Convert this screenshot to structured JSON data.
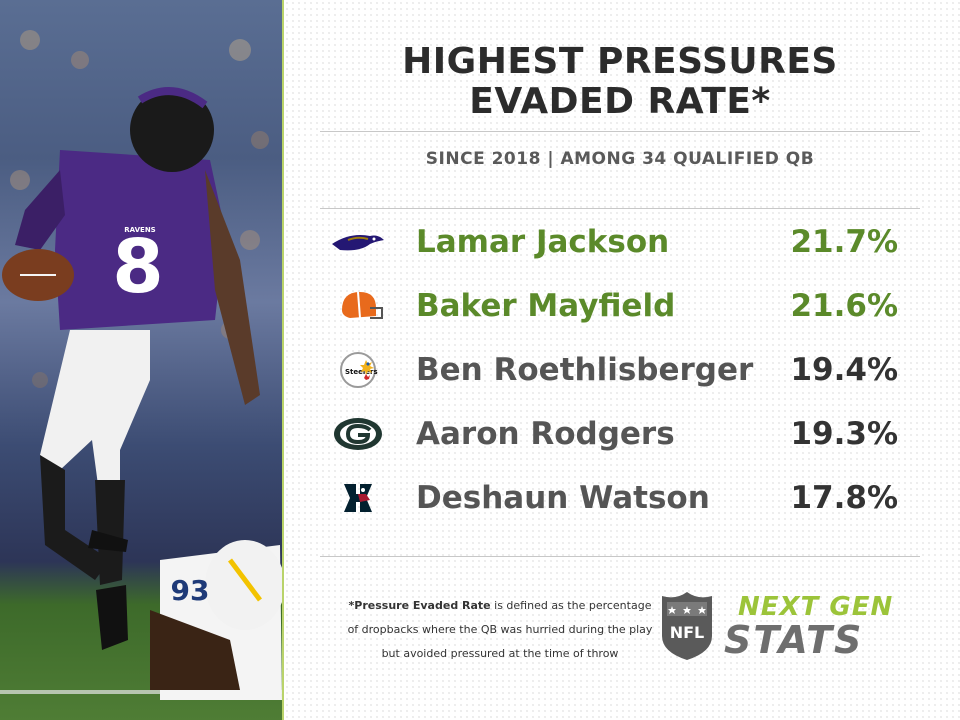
{
  "title_line1": "HIGHEST PRESSURES",
  "title_line2": "EVADED RATE*",
  "subtitle": "SINCE 2018  |  AMONG 34 QUALIFIED QB",
  "rows": [
    {
      "team_logo": "ravens-logo",
      "name": "Lamar Jackson",
      "value": "21.7%",
      "highlight": true
    },
    {
      "team_logo": "browns-helmet",
      "name": "Baker Mayfield",
      "value": "21.6%",
      "highlight": true
    },
    {
      "team_logo": "steelers-logo",
      "name": "Ben Roethlisberger",
      "value": "19.4%",
      "highlight": false
    },
    {
      "team_logo": "packers-logo",
      "name": "Aaron Rodgers",
      "value": "19.3%",
      "highlight": false
    },
    {
      "team_logo": "texans-logo",
      "name": "Deshaun Watson",
      "value": "17.8%",
      "highlight": false
    }
  ],
  "footnote": {
    "term": "*Pressure Evaded Rate",
    "line1_rest": " is defined as the percentage",
    "line2": "of dropbacks where the QB was hurried during the play",
    "line3": "but avoided pressured at the time of throw"
  },
  "brand": {
    "nfl": "NFL",
    "ngs_line1": "NEXT GEN",
    "ngs_line2": "STATS"
  },
  "photo": {
    "jersey_number": "8",
    "team_wordmark": "RAVENS",
    "opponent_jersey_number": "93"
  },
  "colors": {
    "highlight": "#5b8a2a",
    "accent_green": "#9cc43a",
    "text_dark": "#2c2c2c",
    "text_gray": "#555555"
  }
}
